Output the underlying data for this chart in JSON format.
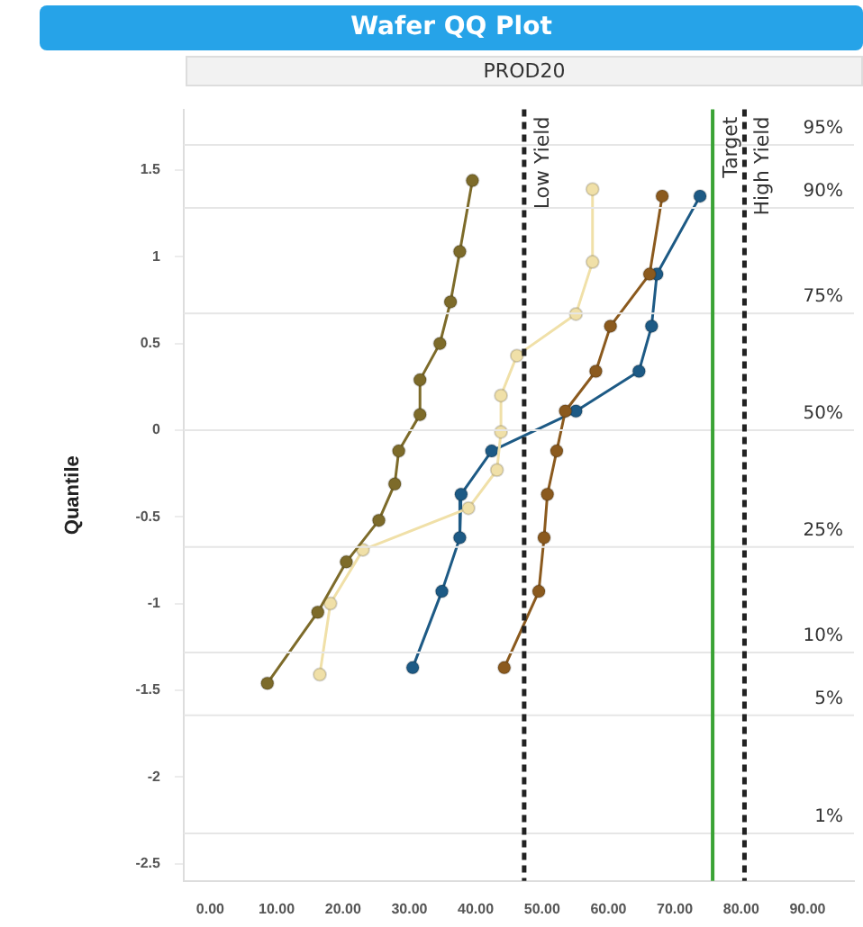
{
  "chart_data": {
    "type": "line",
    "title": "Wafer QQ Plot",
    "subtitle": "PROD20",
    "ylabel": "Quantile",
    "series": [
      {
        "color": "#7d6b2a",
        "x": [
          39.5,
          37.6,
          36.2,
          34.6,
          31.6,
          31.6,
          28.4,
          27.8,
          25.4,
          20.5,
          16.2,
          8.6
        ],
        "values": [
          1.44,
          1.03,
          0.74,
          0.5,
          0.29,
          0.09,
          -0.12,
          -0.31,
          -0.52,
          -0.76,
          -1.05,
          -1.46
        ]
      },
      {
        "color": "#f0e0a8",
        "x": [
          57.6,
          57.6,
          55.1,
          46.2,
          43.8,
          43.8,
          43.2,
          38.9,
          23.0,
          18.1,
          16.5
        ],
        "values": [
          1.39,
          0.97,
          0.67,
          0.43,
          0.2,
          -0.01,
          -0.23,
          -0.45,
          -0.69,
          -1.0,
          -1.41
        ]
      },
      {
        "color": "#8b5a1e",
        "x": [
          68.1,
          66.2,
          60.3,
          58.1,
          53.5,
          52.2,
          50.8,
          50.3,
          49.5,
          44.3
        ],
        "values": [
          1.35,
          0.9,
          0.6,
          0.34,
          0.11,
          -0.12,
          -0.37,
          -0.62,
          -0.93,
          -1.37
        ]
      },
      {
        "color": "#1d5a85",
        "x": [
          73.8,
          67.3,
          66.5,
          64.6,
          55.1,
          42.4,
          37.8,
          37.6,
          34.9,
          30.5
        ],
        "values": [
          1.35,
          0.9,
          0.6,
          0.34,
          0.11,
          -0.12,
          -0.37,
          -0.62,
          -0.93,
          -1.37
        ]
      }
    ],
    "xlim": [
      -4,
      97
    ],
    "xticks": [
      {
        "value": 0,
        "label": "0.00"
      },
      {
        "value": 10,
        "label": "10.00"
      },
      {
        "value": 20,
        "label": "20.00"
      },
      {
        "value": 30,
        "label": "30.00"
      },
      {
        "value": 40,
        "label": "40.00"
      },
      {
        "value": 50,
        "label": "50.00"
      },
      {
        "value": 60,
        "label": "60.00"
      },
      {
        "value": 70,
        "label": "70.00"
      },
      {
        "value": 80,
        "label": "80.00"
      },
      {
        "value": 90,
        "label": "90.00"
      }
    ],
    "ylim": [
      -2.6,
      1.85
    ],
    "yticks": [
      1.5,
      1,
      0.5,
      0,
      -0.5,
      -1,
      -1.5,
      -2,
      -2.5
    ],
    "ref_lines": [
      {
        "axis": "y",
        "value": 1.645,
        "color": "#e6e6e6",
        "line_style": "solid"
      },
      {
        "axis": "y",
        "value": 1.282,
        "color": "#e6e6e6",
        "line_style": "solid"
      },
      {
        "axis": "y",
        "value": 0.674,
        "color": "#e6e6e6",
        "line_style": "solid"
      },
      {
        "axis": "y",
        "value": 0,
        "color": "#e6e6e6",
        "line_style": "solid"
      },
      {
        "axis": "y",
        "value": -0.674,
        "color": "#e6e6e6",
        "line_style": "solid"
      },
      {
        "axis": "y",
        "value": -1.282,
        "color": "#e6e6e6",
        "line_style": "solid"
      },
      {
        "axis": "y",
        "value": -1.645,
        "color": "#e6e6e6",
        "line_style": "solid"
      },
      {
        "axis": "y",
        "value": -2.326,
        "color": "#e6e6e6",
        "line_style": "solid"
      },
      {
        "axis": "x",
        "value": 47.3,
        "label": "Low Yield",
        "color": "#222222",
        "line_style": "dashed"
      },
      {
        "axis": "x",
        "value": 75.7,
        "label": "Target",
        "color": "#3aa335",
        "line_style": "solid"
      },
      {
        "axis": "x",
        "value": 80.5,
        "label": "High Yield",
        "color": "#222222",
        "line_style": "dashed"
      }
    ],
    "annotations": [
      {
        "text": "95%",
        "y": 1.645
      },
      {
        "text": "90%",
        "y": 1.282
      },
      {
        "text": "75%",
        "y": 0.674
      },
      {
        "text": "50%",
        "y": 0
      },
      {
        "text": "25%",
        "y": -0.674
      },
      {
        "text": "10%",
        "y": -1.282
      },
      {
        "text": "5%",
        "y": -1.645
      },
      {
        "text": "1%",
        "y": -2.326
      }
    ],
    "legend": false,
    "marker": "circle",
    "line_style": "solid"
  }
}
